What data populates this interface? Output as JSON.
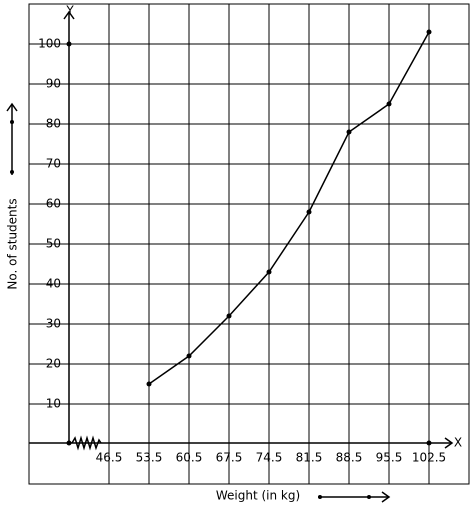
{
  "chart_data": {
    "type": "line",
    "x_label": "Weight (in kg)",
    "y_label": "No. of students",
    "x_axis_name": "X",
    "y_axis_name": "Y",
    "x": [
      53.5,
      60.5,
      67.5,
      74.5,
      81.5,
      88.5,
      95.5,
      102.5
    ],
    "series": [
      {
        "color": "#000000",
        "values": [
          15,
          22,
          32,
          43,
          58,
          78,
          85,
          103
        ]
      }
    ],
    "xlim": [
      32.5,
      109.5
    ],
    "ylim": [
      -10,
      110
    ],
    "xticks": [
      46.5,
      53.5,
      60.5,
      67.5,
      74.5,
      81.5,
      88.5,
      95.5,
      102.5
    ],
    "yticks": [
      10,
      20,
      30,
      40,
      50,
      60,
      70,
      80,
      90,
      100
    ],
    "grid": true
  }
}
